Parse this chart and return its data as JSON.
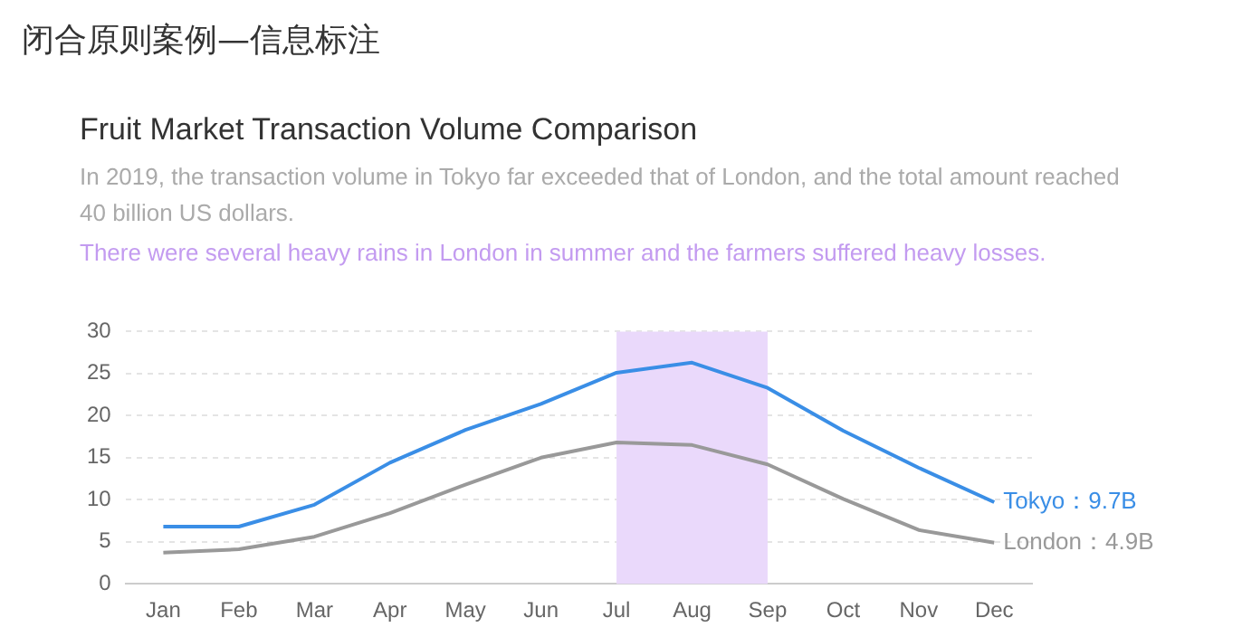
{
  "chart_data": {
    "type": "line",
    "title": "闭合原则案例—信息标注",
    "subtitle": "Fruit Market Transaction Volume Comparison",
    "annotations": [
      "In 2019, the transaction volume in Tokyo far exceeded that of London, and the total amount reached 40 billion US dollars.",
      "There were several heavy rains in London in summer and the farmers suffered heavy losses.",
      {
        "text": "Tokyo：9.7B",
        "x": "Dec",
        "y": 9.7
      },
      {
        "text": "London：4.9B",
        "x": "Dec",
        "y": 4.9
      }
    ],
    "categories": [
      "Jan",
      "Feb",
      "Mar",
      "Apr",
      "May",
      "Jun",
      "Jul",
      "Aug",
      "Sep",
      "Oct",
      "Nov",
      "Dec"
    ],
    "series": [
      {
        "color": "#3a8ee6",
        "values": [
          6.8,
          6.8,
          9.4,
          14.4,
          18.3,
          21.4,
          25.1,
          26.3,
          23.3,
          18.2,
          13.8,
          9.7
        ]
      },
      {
        "color": "#999999",
        "values": [
          3.7,
          4.1,
          5.6,
          8.4,
          11.8,
          15.0,
          16.8,
          16.5,
          14.2,
          10.1,
          6.4,
          4.9
        ]
      }
    ],
    "bands": [
      {
        "axis": "x",
        "from": "Jul",
        "to": "Sep",
        "color": "#ead9fb"
      }
    ],
    "ylim": [
      0,
      30
    ],
    "yticks": [
      0,
      5,
      10,
      15,
      20,
      25,
      30
    ],
    "grid": "y",
    "legend": false,
    "marker": "none",
    "line_style": "solid"
  }
}
